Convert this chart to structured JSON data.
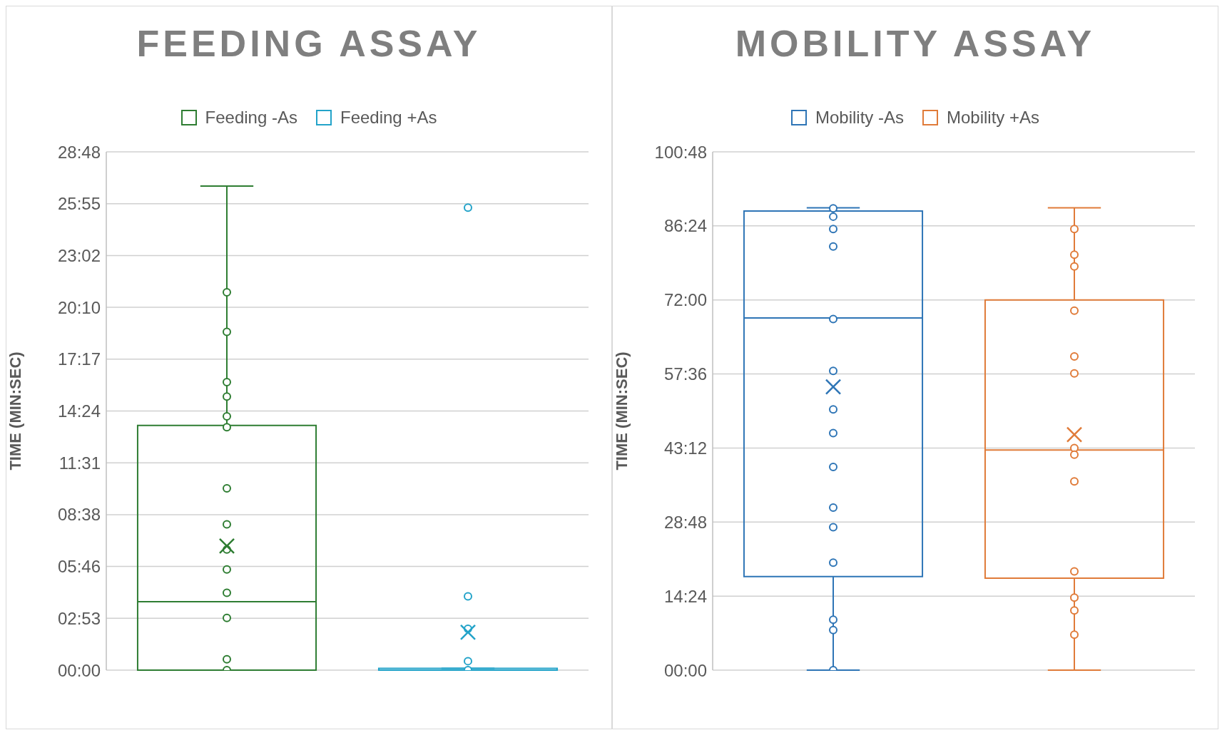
{
  "chart_data": [
    {
      "type": "box",
      "title": "FEEDING ASSAY",
      "ylabel": "TIME (MIN:SEC)",
      "categories": [
        null
      ],
      "legend": "top",
      "grid": "y",
      "ylim": [
        0,
        28.8
      ],
      "yticks": [
        {
          "value": 0,
          "label": "00:00"
        },
        {
          "value": 2.88,
          "label": "02:53"
        },
        {
          "value": 5.76,
          "label": "05:46"
        },
        {
          "value": 8.64,
          "label": "08:38"
        },
        {
          "value": 11.52,
          "label": "11:31"
        },
        {
          "value": 14.4,
          "label": "14:24"
        },
        {
          "value": 17.28,
          "label": "17:17"
        },
        {
          "value": 20.16,
          "label": "20:10"
        },
        {
          "value": 23.04,
          "label": "23:02"
        },
        {
          "value": 25.92,
          "label": "25:55"
        },
        {
          "value": 28.8,
          "label": "28:48"
        }
      ],
      "series": [
        {
          "name": "Feeding -As",
          "color": "#2e7d32",
          "boxes": [
            {
              "low": 0,
              "q1": 0,
              "median": 3.8,
              "q3": 13.6,
              "high": 26.9,
              "mean": 6.9,
              "outliers": [
                21.0,
                18.8,
                16.0,
                15.2,
                14.1,
                13.5,
                10.1,
                8.1,
                6.7,
                5.6,
                4.3,
                2.9,
                0.6,
                0
              ]
            }
          ]
        },
        {
          "name": "Feeding +As",
          "color": "#23a3c9",
          "boxes": [
            {
              "low": 0,
              "q1": 0,
              "median": 0,
              "q3": 0.1,
              "high": 0.1,
              "mean": 2.1,
              "outliers": [
                25.7,
                4.1,
                2.3,
                0.5,
                0
              ]
            }
          ]
        }
      ]
    },
    {
      "type": "box",
      "title": "MOBILITY ASSAY",
      "ylabel": "TIME (MIN:SEC)",
      "categories": [
        null
      ],
      "legend": "top",
      "grid": "y",
      "ylim": [
        0,
        100.8
      ],
      "yticks": [
        {
          "value": 0,
          "label": "00:00"
        },
        {
          "value": 14.4,
          "label": "14:24"
        },
        {
          "value": 28.8,
          "label": "28:48"
        },
        {
          "value": 43.2,
          "label": "43:12"
        },
        {
          "value": 57.6,
          "label": "57:36"
        },
        {
          "value": 72,
          "label": "72:00"
        },
        {
          "value": 86.4,
          "label": "86:24"
        },
        {
          "value": 100.8,
          "label": "100:48"
        }
      ],
      "series": [
        {
          "name": "Mobility -As",
          "color": "#2e75b6",
          "boxes": [
            {
              "low": 0,
              "q1": 18.2,
              "median": 68.5,
              "q3": 89.3,
              "high": 89.9,
              "mean": 55.1,
              "outliers": [
                89.8,
                88.2,
                85.8,
                82.4,
                68.3,
                58.2,
                50.7,
                46.1,
                39.5,
                31.6,
                27.8,
                20.9,
                9.8,
                7.8,
                0
              ]
            }
          ]
        },
        {
          "name": "Mobility +As",
          "color": "#e07b39",
          "boxes": [
            {
              "low": 0,
              "q1": 17.9,
              "median": 42.8,
              "q3": 72.0,
              "high": 89.9,
              "mean": 45.8,
              "outliers": [
                85.8,
                80.8,
                78.5,
                69.9,
                61.0,
                57.7,
                43.2,
                41.9,
                36.7,
                19.2,
                14.1,
                11.6,
                6.9
              ]
            }
          ]
        }
      ]
    }
  ]
}
